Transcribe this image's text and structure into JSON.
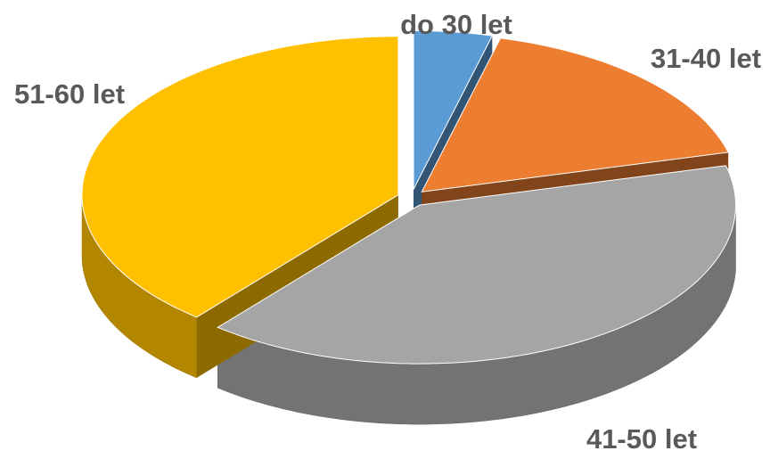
{
  "chart_data": {
    "type": "pie3d",
    "categories": [
      "do 30 let",
      "31-40 let",
      "41-50 let",
      "51-60 let"
    ],
    "values": [
      4,
      17,
      40,
      39
    ],
    "colors": [
      "#5b9bd5",
      "#ed7d31",
      "#a5a5a5",
      "#ffc000"
    ]
  }
}
